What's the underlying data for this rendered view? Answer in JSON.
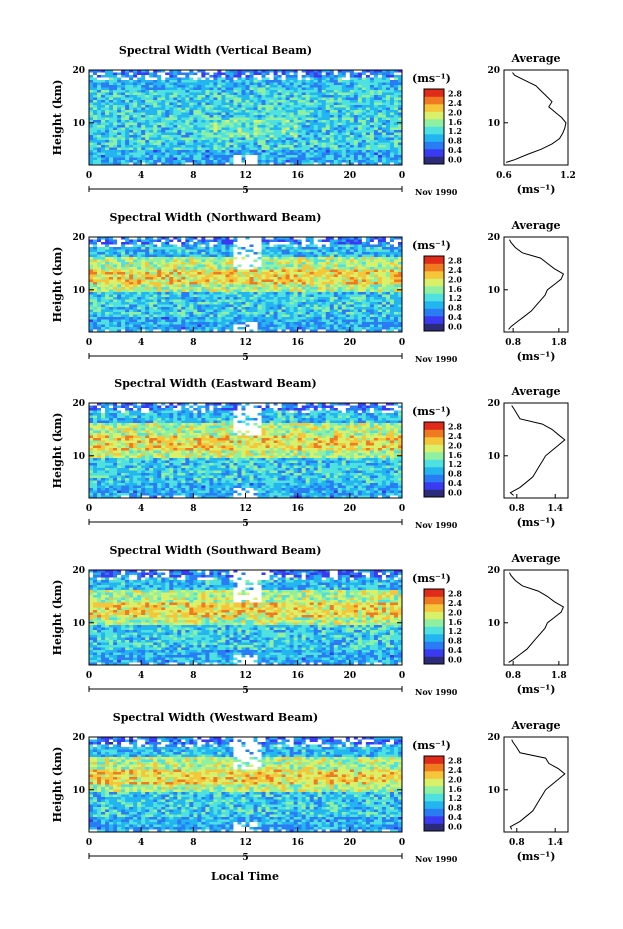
{
  "figure": {
    "xlabel_bottom": "Local Time",
    "date_label": "Nov 1990",
    "date_tick": "5",
    "ylabel": "Height (km)",
    "colorbar_unit": "(ms⁻¹)",
    "colorbar_ticks": [
      "0.0",
      "0.4",
      "0.8",
      "1.2",
      "1.6",
      "2.0",
      "2.4",
      "2.8"
    ],
    "colorbar_colors": [
      "#2b2b7a",
      "#3a3af0",
      "#2a7cf5",
      "#23b5f0",
      "#4fe0e0",
      "#8ef0a0",
      "#d8f06a",
      "#f5c53a",
      "#f07a22",
      "#e02a1a"
    ],
    "side_title": "Average",
    "side_xunit": "(ms⁻¹)"
  },
  "chart_data": [
    {
      "type": "heatmap",
      "title": "Spectral Width (Vertical Beam)",
      "xlabel": "Local Time",
      "ylabel": "Height (km)",
      "x_ticks": [
        "0",
        "4",
        "8",
        "12",
        "16",
        "20",
        "0"
      ],
      "xlim": [
        0,
        24
      ],
      "y_ticks": [
        "10",
        "20"
      ],
      "ylim": [
        2,
        20
      ],
      "colorbar": {
        "unit": "(ms⁻¹)",
        "range": [
          0.0,
          2.8
        ]
      },
      "average_profile": {
        "title": "Average",
        "x_ticks": [
          "0.6",
          "1.2"
        ],
        "xlim": [
          0.6,
          1.2
        ],
        "height": [
          2.5,
          3,
          4,
          5,
          6,
          7,
          8,
          9,
          10,
          11,
          12,
          13,
          14,
          15,
          16,
          17,
          18,
          19,
          19.5
        ],
        "width": [
          0.62,
          0.7,
          0.82,
          0.95,
          1.05,
          1.12,
          1.15,
          1.17,
          1.18,
          1.14,
          1.08,
          1.02,
          1.05,
          1.0,
          0.95,
          0.9,
          0.8,
          0.7,
          0.68
        ]
      }
    },
    {
      "type": "heatmap",
      "title": "Spectral Width (Northward Beam)",
      "xlabel": "Local Time",
      "ylabel": "Height (km)",
      "x_ticks": [
        "0",
        "4",
        "8",
        "12",
        "16",
        "20",
        "0"
      ],
      "xlim": [
        0,
        24
      ],
      "y_ticks": [
        "10",
        "20"
      ],
      "ylim": [
        2,
        20
      ],
      "colorbar": {
        "unit": "(ms⁻¹)",
        "range": [
          0.0,
          2.8
        ]
      },
      "average_profile": {
        "title": "Average",
        "x_ticks": [
          "0.8",
          "1.8"
        ],
        "xlim": [
          0.6,
          2.0
        ],
        "height": [
          2.5,
          3,
          4,
          5,
          6,
          7,
          8,
          9,
          10,
          11,
          12,
          13,
          14,
          15,
          16,
          17,
          18,
          19,
          19.5
        ],
        "width": [
          0.7,
          0.75,
          0.9,
          1.05,
          1.2,
          1.3,
          1.4,
          1.5,
          1.55,
          1.7,
          1.85,
          1.9,
          1.7,
          1.55,
          1.4,
          1.0,
          0.85,
          0.75,
          0.72
        ]
      }
    },
    {
      "type": "heatmap",
      "title": "Spectral Width (Eastward Beam)",
      "xlabel": "Local Time",
      "ylabel": "Height (km)",
      "x_ticks": [
        "0",
        "4",
        "8",
        "12",
        "16",
        "20",
        "0"
      ],
      "xlim": [
        0,
        24
      ],
      "y_ticks": [
        "10",
        "20"
      ],
      "ylim": [
        2,
        20
      ],
      "colorbar": {
        "unit": "(ms⁻¹)",
        "range": [
          0.0,
          2.8
        ]
      },
      "average_profile": {
        "title": "Average",
        "x_ticks": [
          "0.8",
          "1.4"
        ],
        "xlim": [
          0.6,
          1.6
        ],
        "height": [
          2.5,
          3,
          4,
          5,
          6,
          7,
          8,
          9,
          10,
          11,
          12,
          13,
          14,
          15,
          16,
          17,
          18,
          19,
          19.5
        ],
        "width": [
          0.75,
          0.7,
          0.85,
          0.95,
          1.05,
          1.1,
          1.15,
          1.2,
          1.25,
          1.35,
          1.45,
          1.55,
          1.45,
          1.35,
          1.2,
          0.85,
          0.8,
          0.75,
          0.72
        ]
      }
    },
    {
      "type": "heatmap",
      "title": "Spectral Width (Southward Beam)",
      "xlabel": "Local Time",
      "ylabel": "Height (km)",
      "x_ticks": [
        "0",
        "4",
        "8",
        "12",
        "16",
        "20",
        "0"
      ],
      "xlim": [
        0,
        24
      ],
      "y_ticks": [
        "10",
        "20"
      ],
      "ylim": [
        2,
        20
      ],
      "colorbar": {
        "unit": "(ms⁻¹)",
        "range": [
          0.0,
          2.8
        ]
      },
      "average_profile": {
        "title": "Average",
        "x_ticks": [
          "0.8",
          "1.8"
        ],
        "xlim": [
          0.6,
          2.0
        ],
        "height": [
          2.5,
          3,
          4,
          5,
          6,
          7,
          8,
          9,
          10,
          11,
          12,
          13,
          14,
          15,
          16,
          17,
          18,
          19,
          19.5
        ],
        "width": [
          0.7,
          0.8,
          0.95,
          1.1,
          1.2,
          1.3,
          1.4,
          1.5,
          1.55,
          1.7,
          1.85,
          1.9,
          1.7,
          1.55,
          1.35,
          1.0,
          0.85,
          0.75,
          0.72
        ]
      }
    },
    {
      "type": "heatmap",
      "title": "Spectral Width (Westward Beam)",
      "xlabel": "Local Time",
      "ylabel": "Height (km)",
      "x_ticks": [
        "0",
        "4",
        "8",
        "12",
        "16",
        "20",
        "0"
      ],
      "xlim": [
        0,
        24
      ],
      "y_ticks": [
        "10",
        "20"
      ],
      "ylim": [
        2,
        20
      ],
      "colorbar": {
        "unit": "(ms⁻¹)",
        "range": [
          0.0,
          2.8
        ]
      },
      "average_profile": {
        "title": "Average",
        "x_ticks": [
          "0.8",
          "1.4"
        ],
        "xlim": [
          0.6,
          1.6
        ],
        "height": [
          2.5,
          3,
          4,
          5,
          6,
          7,
          8,
          9,
          10,
          11,
          12,
          13,
          14,
          15,
          16,
          17,
          18,
          19,
          19.5
        ],
        "width": [
          0.72,
          0.7,
          0.85,
          0.95,
          1.05,
          1.1,
          1.15,
          1.2,
          1.25,
          1.35,
          1.45,
          1.55,
          1.45,
          1.3,
          1.25,
          0.85,
          0.8,
          0.74,
          0.72
        ]
      }
    }
  ]
}
